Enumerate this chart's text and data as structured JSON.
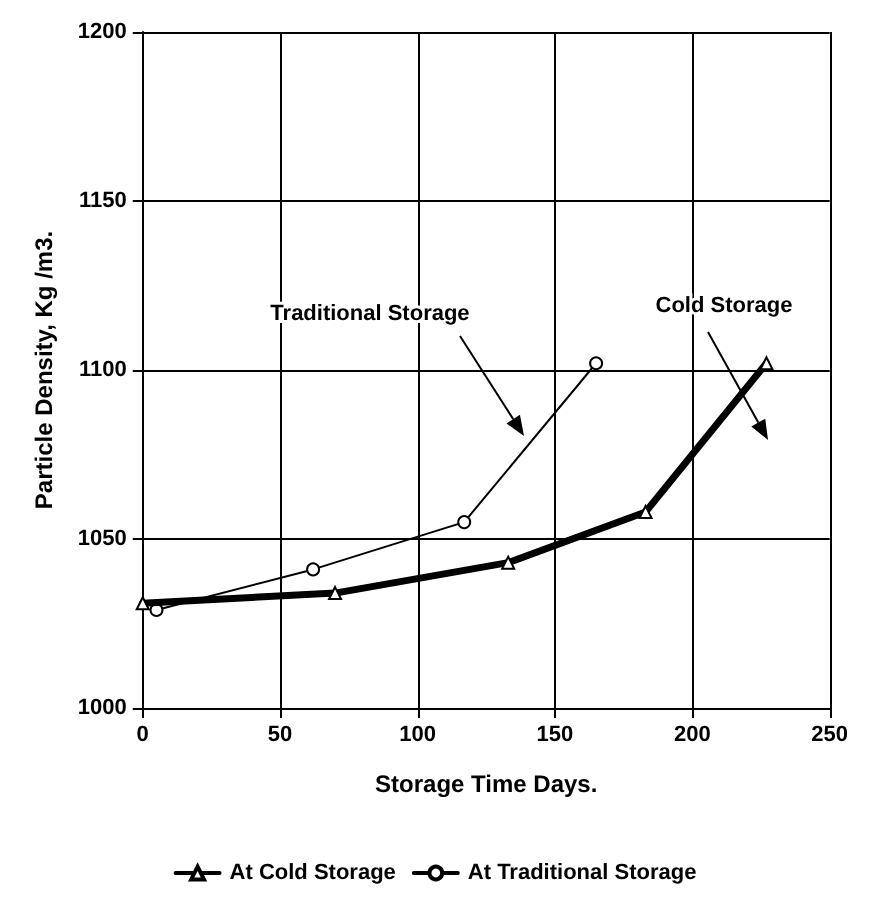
{
  "chart_data": {
    "type": "line",
    "xlabel": "Storage Time Days.",
    "ylabel": "Particle Density, Kg /m3.",
    "xlim": [
      0,
      250
    ],
    "xticks": [
      0,
      50,
      100,
      150,
      200,
      250
    ],
    "ylim": [
      1000,
      1200
    ],
    "yticks": [
      1000,
      1050,
      1100,
      1150,
      1200
    ],
    "grid": true,
    "legend": "bottom",
    "line_style": "solid",
    "series": [
      {
        "name": "At Cold Storage",
        "color": "#000000",
        "marker": "triangle",
        "x": [
          0,
          70,
          133,
          183,
          227
        ],
        "values": [
          1031,
          1034,
          1043,
          1058,
          1102
        ]
      },
      {
        "name": "At Traditional Storage",
        "color": "#000000",
        "marker": "circle",
        "x": [
          5,
          62,
          117,
          165
        ],
        "values": [
          1029,
          1041,
          1055,
          1102
        ]
      }
    ],
    "annotations": [
      "Traditional Storage",
      "Cold Storage"
    ]
  }
}
